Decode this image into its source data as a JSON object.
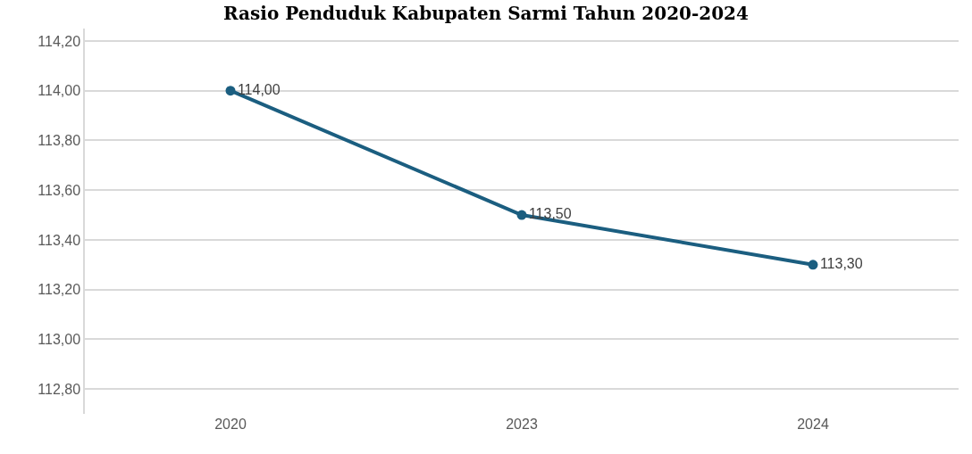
{
  "chart_data": {
    "type": "line",
    "title": "Rasio Penduduk Kabupaten Sarmi Tahun 2020-2024",
    "categories": [
      "2020",
      "2023",
      "2024"
    ],
    "series": [
      {
        "color": "#1b5e80",
        "values": [
          114.0,
          113.5,
          113.3
        ],
        "value_labels": [
          "114,00",
          "113,50",
          "113,30"
        ]
      }
    ],
    "ylim": [
      112.7,
      114.25
    ],
    "yticks": [
      {
        "value": 112.8,
        "label": "112,80"
      },
      {
        "value": 113.0,
        "label": "113,00"
      },
      {
        "value": 113.2,
        "label": "113,20"
      },
      {
        "value": 113.4,
        "label": "113,40"
      },
      {
        "value": 113.6,
        "label": "113,60"
      },
      {
        "value": 113.8,
        "label": "113,80"
      },
      {
        "value": 114.0,
        "label": "114,00"
      },
      {
        "value": 114.2,
        "label": "114,20"
      }
    ],
    "grid": "y",
    "legend": false,
    "marker": "circle",
    "line_style": "solid"
  }
}
